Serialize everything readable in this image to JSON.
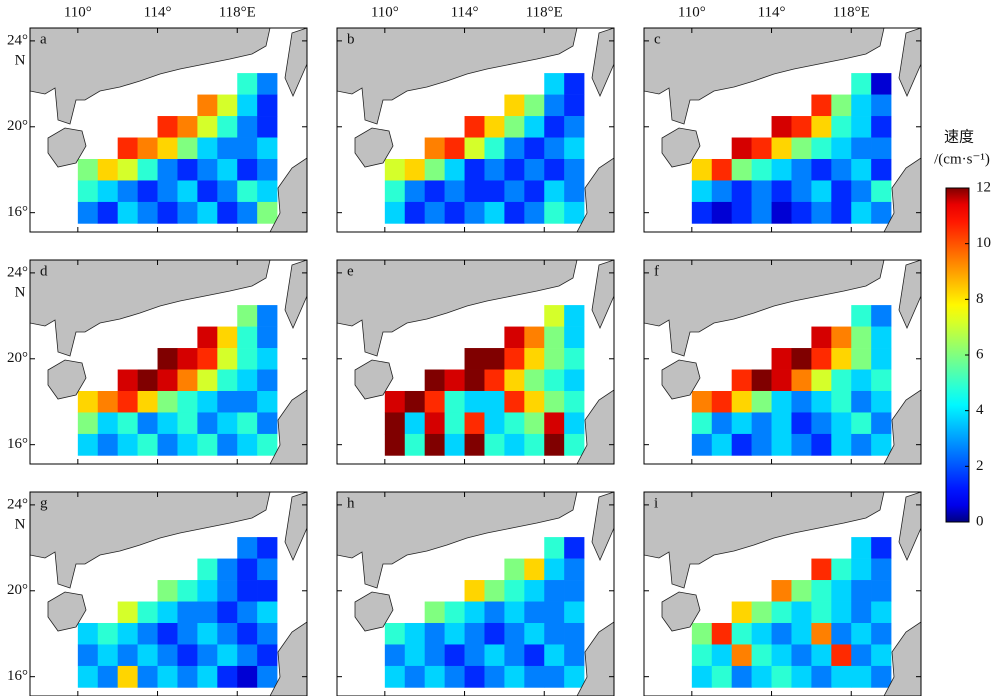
{
  "map": {
    "xlim": [
      107.6,
      121.5
    ],
    "ylim": [
      15.1,
      24.6
    ],
    "xticks": [
      {
        "value": 110,
        "label": "110°"
      },
      {
        "value": 114,
        "label": "114°"
      },
      {
        "value": 118,
        "label": "118°E"
      }
    ],
    "yticks": [
      {
        "value": 24,
        "label": "24°"
      },
      {
        "value": 20,
        "label": "20°"
      },
      {
        "value": 16,
        "label": "16°"
      }
    ],
    "lat_hemisphere": "N",
    "lon_start": 110,
    "lat_start": 23.5,
    "cell_size": 1,
    "panels": [
      {
        "label": "a",
        "speed": [
          [
            null,
            null,
            null,
            null,
            null,
            null,
            null,
            null,
            null,
            null
          ],
          [
            null,
            null,
            null,
            null,
            null,
            null,
            null,
            null,
            5,
            3
          ],
          [
            null,
            null,
            null,
            null,
            null,
            null,
            9,
            7,
            4,
            2
          ],
          [
            null,
            null,
            null,
            null,
            10,
            9,
            7,
            5,
            3,
            2
          ],
          [
            null,
            null,
            10,
            9,
            8,
            6,
            4,
            3,
            3,
            4
          ],
          [
            6,
            8,
            7,
            5,
            3,
            2,
            3,
            4,
            2,
            3
          ],
          [
            5,
            4,
            3,
            2,
            3,
            4,
            2,
            3,
            5,
            4
          ],
          [
            3,
            2,
            4,
            3,
            2,
            3,
            4,
            2,
            3,
            6
          ]
        ]
      },
      {
        "label": "b",
        "speed": [
          [
            null,
            null,
            null,
            null,
            null,
            null,
            null,
            null,
            null,
            null
          ],
          [
            null,
            null,
            null,
            null,
            null,
            null,
            null,
            null,
            4,
            2
          ],
          [
            null,
            null,
            null,
            null,
            null,
            null,
            8,
            6,
            3,
            2
          ],
          [
            null,
            null,
            null,
            null,
            10,
            8,
            6,
            4,
            2,
            3
          ],
          [
            null,
            null,
            9,
            10,
            7,
            5,
            3,
            2,
            3,
            4
          ],
          [
            7,
            8,
            6,
            4,
            2,
            3,
            2,
            3,
            2,
            3
          ],
          [
            5,
            3,
            2,
            3,
            2,
            2,
            3,
            2,
            4,
            3
          ],
          [
            4,
            2,
            3,
            2,
            3,
            4,
            2,
            3,
            5,
            4
          ]
        ]
      },
      {
        "label": "c",
        "speed": [
          [
            null,
            null,
            null,
            null,
            null,
            null,
            null,
            null,
            null,
            null
          ],
          [
            null,
            null,
            null,
            null,
            null,
            null,
            null,
            null,
            5,
            1
          ],
          [
            null,
            null,
            null,
            null,
            null,
            null,
            10,
            6,
            4,
            3
          ],
          [
            null,
            null,
            null,
            null,
            11,
            10,
            8,
            5,
            4,
            2
          ],
          [
            null,
            null,
            11,
            10,
            8,
            6,
            5,
            4,
            3,
            3
          ],
          [
            8,
            10,
            6,
            5,
            4,
            3,
            2,
            3,
            4,
            2
          ],
          [
            4,
            3,
            2,
            3,
            2,
            3,
            4,
            2,
            3,
            5
          ],
          [
            2,
            1,
            2,
            3,
            1,
            2,
            3,
            2,
            4,
            3
          ]
        ]
      },
      {
        "label": "d",
        "speed": [
          [
            null,
            null,
            null,
            null,
            null,
            null,
            null,
            null,
            null,
            null
          ],
          [
            null,
            null,
            null,
            null,
            null,
            null,
            null,
            null,
            6,
            3
          ],
          [
            null,
            null,
            null,
            null,
            null,
            null,
            11,
            8,
            5,
            3
          ],
          [
            null,
            null,
            null,
            null,
            12,
            11,
            10,
            7,
            5,
            4
          ],
          [
            null,
            null,
            11,
            12,
            11,
            9,
            7,
            5,
            4,
            3
          ],
          [
            8,
            9,
            10,
            8,
            6,
            5,
            4,
            3,
            3,
            4
          ],
          [
            6,
            4,
            5,
            3,
            4,
            5,
            3,
            4,
            5,
            3
          ],
          [
            4,
            3,
            4,
            5,
            3,
            4,
            5,
            3,
            4,
            5
          ]
        ]
      },
      {
        "label": "e",
        "speed": [
          [
            null,
            null,
            null,
            null,
            null,
            null,
            null,
            null,
            null,
            null
          ],
          [
            null,
            null,
            null,
            null,
            null,
            null,
            null,
            null,
            7,
            4
          ],
          [
            null,
            null,
            null,
            null,
            null,
            null,
            11,
            9,
            6,
            4
          ],
          [
            null,
            null,
            null,
            null,
            12,
            12,
            10,
            8,
            6,
            5
          ],
          [
            null,
            null,
            12,
            11,
            12,
            10,
            8,
            6,
            5,
            4
          ],
          [
            11,
            12,
            10,
            5,
            4,
            4,
            10,
            8,
            6,
            5
          ],
          [
            12,
            4,
            11,
            5,
            10,
            4,
            5,
            6,
            11,
            4
          ],
          [
            12,
            5,
            12,
            4,
            12,
            5,
            4,
            5,
            12,
            5
          ]
        ]
      },
      {
        "label": "f",
        "speed": [
          [
            null,
            null,
            null,
            null,
            null,
            null,
            null,
            null,
            null,
            null
          ],
          [
            null,
            null,
            null,
            null,
            null,
            null,
            null,
            null,
            5,
            3
          ],
          [
            null,
            null,
            null,
            null,
            null,
            null,
            11,
            9,
            6,
            4
          ],
          [
            null,
            null,
            null,
            null,
            11,
            12,
            10,
            8,
            6,
            4
          ],
          [
            null,
            null,
            10,
            12,
            11,
            9,
            7,
            5,
            4,
            5
          ],
          [
            9,
            10,
            8,
            6,
            4,
            3,
            4,
            5,
            3,
            4
          ],
          [
            5,
            3,
            4,
            3,
            4,
            2,
            3,
            4,
            5,
            3
          ],
          [
            3,
            4,
            2,
            3,
            4,
            3,
            2,
            4,
            3,
            4
          ]
        ]
      },
      {
        "label": "g",
        "speed": [
          [
            null,
            null,
            null,
            null,
            null,
            null,
            null,
            null,
            null,
            null
          ],
          [
            null,
            null,
            null,
            null,
            null,
            null,
            null,
            null,
            3,
            2
          ],
          [
            null,
            null,
            null,
            null,
            null,
            null,
            5,
            3,
            2,
            3
          ],
          [
            null,
            null,
            null,
            null,
            6,
            5,
            4,
            3,
            2,
            2
          ],
          [
            null,
            null,
            7,
            5,
            4,
            3,
            3,
            2,
            3,
            4
          ],
          [
            4,
            5,
            4,
            3,
            2,
            3,
            4,
            3,
            2,
            3
          ],
          [
            3,
            4,
            3,
            4,
            3,
            2,
            3,
            4,
            3,
            2
          ],
          [
            4,
            3,
            8,
            3,
            4,
            3,
            4,
            2,
            1,
            3
          ]
        ]
      },
      {
        "label": "h",
        "speed": [
          [
            null,
            null,
            null,
            null,
            null,
            null,
            null,
            null,
            null,
            null
          ],
          [
            null,
            null,
            null,
            null,
            null,
            null,
            null,
            null,
            5,
            2
          ],
          [
            null,
            null,
            null,
            null,
            null,
            null,
            6,
            8,
            4,
            3
          ],
          [
            null,
            null,
            null,
            null,
            8,
            6,
            5,
            4,
            3,
            3
          ],
          [
            null,
            null,
            6,
            5,
            4,
            3,
            4,
            3,
            3,
            4
          ],
          [
            5,
            4,
            3,
            4,
            3,
            2,
            3,
            4,
            3,
            3
          ],
          [
            3,
            4,
            3,
            2,
            3,
            4,
            3,
            2,
            4,
            3
          ],
          [
            4,
            3,
            4,
            3,
            2,
            3,
            4,
            3,
            3,
            4
          ]
        ]
      },
      {
        "label": "i",
        "speed": [
          [
            null,
            null,
            null,
            null,
            null,
            null,
            null,
            null,
            null,
            null
          ],
          [
            null,
            null,
            null,
            null,
            null,
            null,
            null,
            null,
            4,
            2
          ],
          [
            null,
            null,
            null,
            null,
            null,
            null,
            10,
            5,
            4,
            3
          ],
          [
            null,
            null,
            null,
            null,
            9,
            6,
            5,
            4,
            3,
            3
          ],
          [
            null,
            null,
            8,
            6,
            5,
            4,
            5,
            4,
            3,
            4
          ],
          [
            6,
            10,
            5,
            4,
            3,
            4,
            9,
            3,
            4,
            3
          ],
          [
            5,
            4,
            9,
            5,
            4,
            3,
            4,
            10,
            3,
            4
          ],
          [
            4,
            5,
            3,
            4,
            5,
            4,
            3,
            4,
            4,
            3
          ]
        ]
      }
    ],
    "colorbar": {
      "title": "速度",
      "unit": "/(cm·s⁻¹)",
      "lim": [
        0,
        12
      ],
      "ticks": [
        0,
        2,
        4,
        6,
        8,
        10,
        12
      ]
    }
  }
}
